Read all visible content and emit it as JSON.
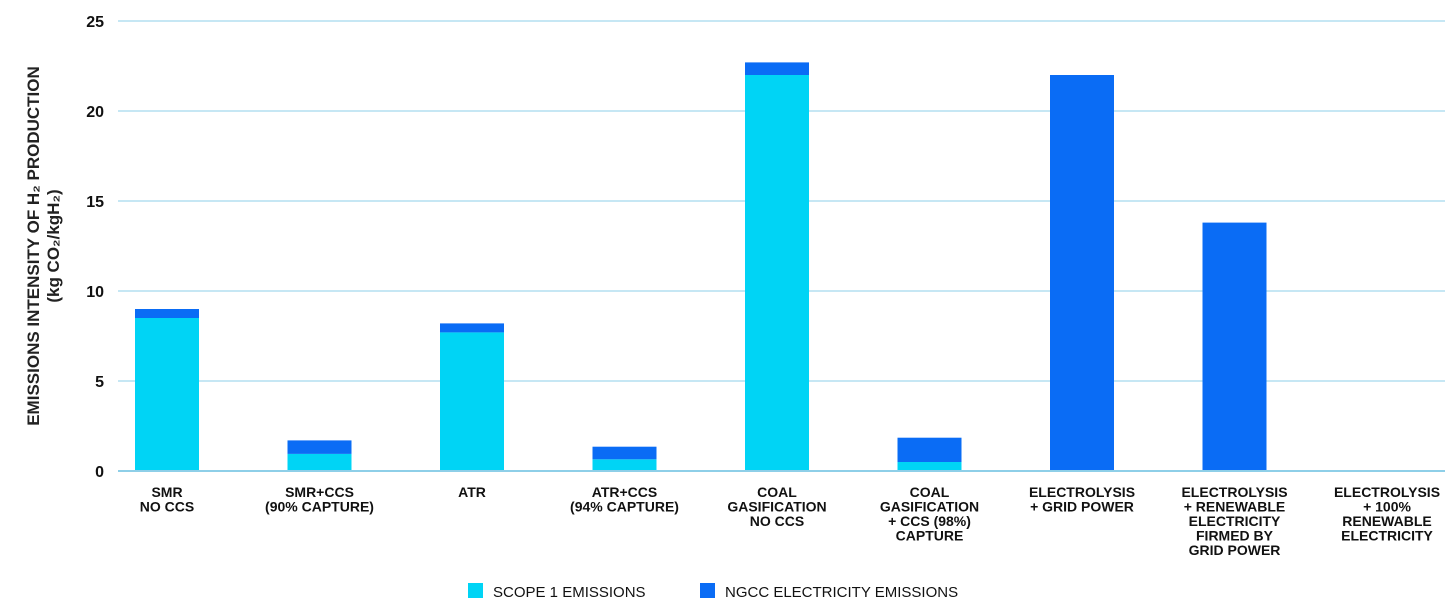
{
  "chart_data": {
    "type": "bar",
    "stacked": true,
    "ylabel_lines": [
      "EMISSIONS INTENSITY OF H₂ PRODUCTION",
      "(kg CO₂/kgH₂)"
    ],
    "ylim": [
      0,
      25
    ],
    "yticks": [
      0,
      5,
      10,
      15,
      20,
      25
    ],
    "grid": true,
    "legend_position": "bottom",
    "categories": [
      [
        "SMR",
        "NO CCS"
      ],
      [
        "SMR+CCS",
        "(90% CAPTURE)"
      ],
      [
        "ATR"
      ],
      [
        "ATR+CCS",
        "(94% CAPTURE)"
      ],
      [
        "COAL",
        "GASIFICATION",
        "NO CCS"
      ],
      [
        "COAL",
        "GASIFICATION",
        "+ CCS (98%)",
        "CAPTURE"
      ],
      [
        "ELECTROLYSIS",
        "+ GRID POWER"
      ],
      [
        "ELECTROLYSIS",
        "+ RENEWABLE",
        "ELECTRICITY",
        "FIRMED BY",
        "GRID POWER"
      ],
      [
        "ELECTROLYSIS",
        "+ 100%",
        "RENEWABLE",
        "ELECTRICITY"
      ]
    ],
    "series": [
      {
        "name": "SCOPE 1 EMISSIONS",
        "color": "#00d4f5",
        "values": [
          8.5,
          0.95,
          7.7,
          0.65,
          22.0,
          0.5,
          0,
          0,
          0
        ]
      },
      {
        "name": "NGCC ELECTRICITY EMISSIONS",
        "color": "#0a6cf5",
        "values": [
          0.5,
          0.75,
          0.5,
          0.7,
          0.7,
          1.35,
          22.0,
          13.8,
          0
        ]
      }
    ]
  }
}
